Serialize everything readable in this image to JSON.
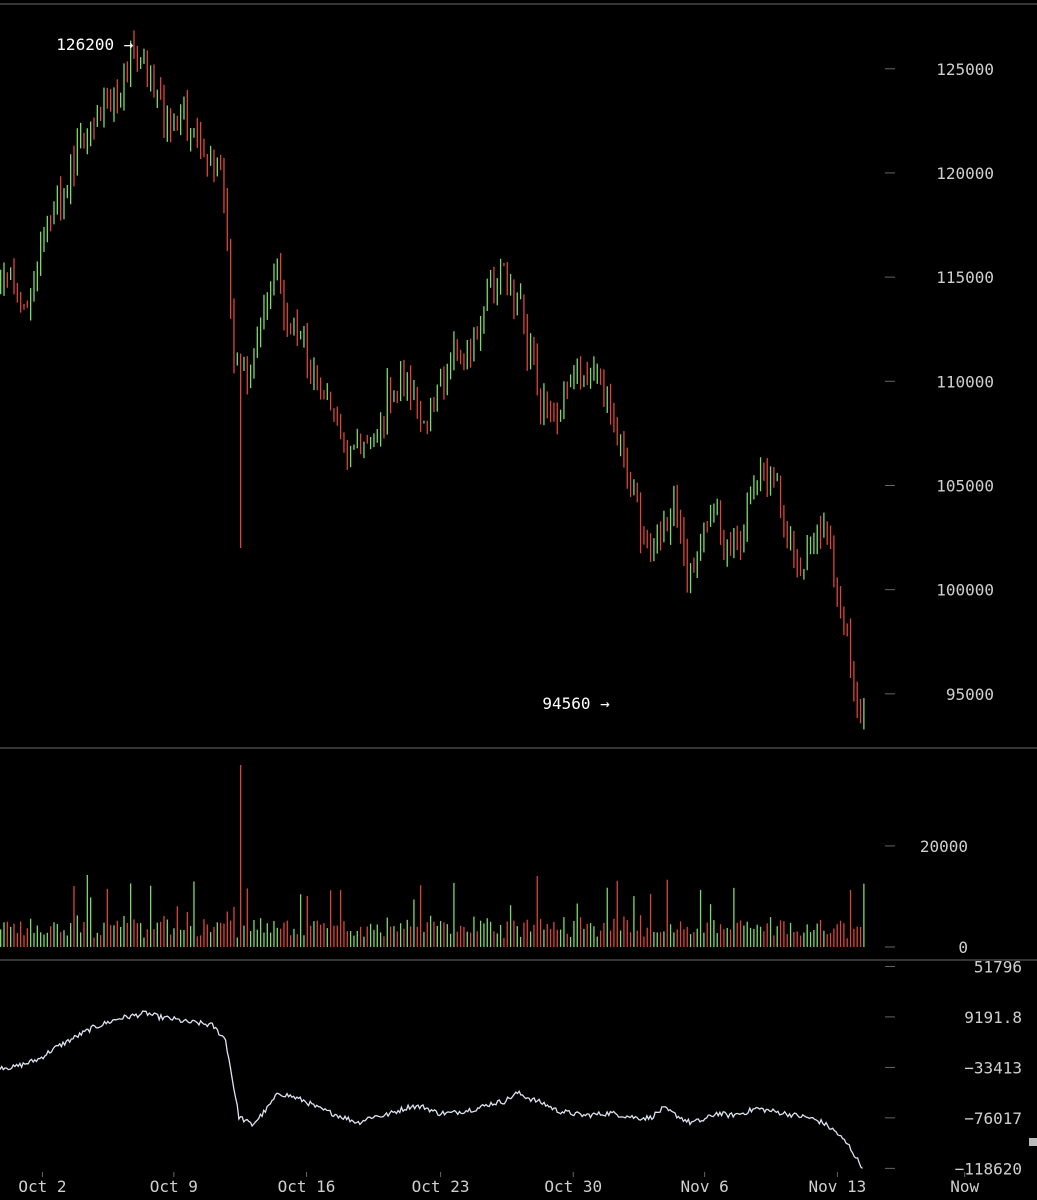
{
  "chart_data": [
    {
      "name": "price",
      "type": "candlestick",
      "y_ticks": [
        125000,
        120000,
        115000,
        110000,
        105000,
        100000,
        95000
      ],
      "y_tick_labels": [
        "125000",
        "120000",
        "115000",
        "110000",
        "105000",
        "100000",
        "95000"
      ],
      "ylim": [
        92400,
        128300
      ],
      "annotations": [
        {
          "text": "126200 →",
          "value": 126200,
          "day": 9.9
        },
        {
          "text": "94560 →",
          "value": 94560,
          "day": 45.8
        }
      ],
      "price_path": [
        [
          1,
          114500
        ],
        [
          2,
          113000
        ],
        [
          3,
          115000
        ],
        [
          4,
          117500
        ],
        [
          5,
          119000
        ],
        [
          6,
          121000
        ],
        [
          7,
          121500
        ],
        [
          8,
          123000
        ],
        [
          9,
          124000
        ],
        [
          10,
          125500
        ],
        [
          11,
          126000
        ],
        [
          12,
          123500
        ],
        [
          13,
          122000
        ],
        [
          14,
          123000
        ],
        [
          15,
          121500
        ],
        [
          16,
          120500
        ],
        [
          17,
          119500
        ],
        [
          18,
          110500
        ],
        [
          19,
          110000
        ],
        [
          20,
          114000
        ],
        [
          21,
          115000
        ],
        [
          22,
          113000
        ],
        [
          23,
          111500
        ],
        [
          24,
          110500
        ],
        [
          25,
          108500
        ],
        [
          26,
          107000
        ],
        [
          27,
          106500
        ],
        [
          28,
          107000
        ],
        [
          29,
          108500
        ],
        [
          30,
          110000
        ],
        [
          31,
          109500
        ],
        [
          32,
          107500
        ],
        [
          33,
          109500
        ],
        [
          34,
          111000
        ],
        [
          35,
          111500
        ],
        [
          36,
          112000
        ],
        [
          37,
          114000
        ],
        [
          38,
          115500
        ],
        [
          39,
          114500
        ],
        [
          40,
          112000
        ],
        [
          41,
          109000
        ],
        [
          42,
          107500
        ],
        [
          43,
          109500
        ],
        [
          44,
          110500
        ],
        [
          45,
          110000
        ],
        [
          46,
          109000
        ],
        [
          47,
          107500
        ],
        [
          48,
          105000
        ],
        [
          49,
          101500
        ],
        [
          50,
          103000
        ],
        [
          51,
          104000
        ],
        [
          52,
          101000
        ],
        [
          53,
          102000
        ],
        [
          54,
          103500
        ],
        [
          55,
          102000
        ],
        [
          56,
          102500
        ],
        [
          57,
          104500
        ],
        [
          58,
          105500
        ],
        [
          59,
          104500
        ],
        [
          60,
          102000
        ],
        [
          61,
          101500
        ],
        [
          62,
          103000
        ],
        [
          63,
          101000
        ],
        [
          64,
          98000
        ],
        [
          65,
          94560
        ]
      ]
    },
    {
      "name": "volume",
      "type": "bar",
      "y_ticks": [
        20000,
        0
      ],
      "y_tick_labels": [
        "20000",
        "0"
      ],
      "ylim": [
        0,
        37000
      ]
    },
    {
      "name": "indicator",
      "type": "line",
      "y_ticks": [
        51796,
        9191.8,
        -33413,
        -76017,
        -118620
      ],
      "y_tick_labels": [
        "51796",
        "9191.8",
        "−33413",
        "−76017",
        "−118620"
      ],
      "ylim": [
        -120000,
        53000
      ],
      "path": [
        [
          0,
          -33000
        ],
        [
          1,
          -33500
        ],
        [
          2,
          -30000
        ],
        [
          3,
          -26000
        ],
        [
          4,
          -18000
        ],
        [
          5,
          -12000
        ],
        [
          6,
          -6000
        ],
        [
          7,
          0
        ],
        [
          8,
          4000
        ],
        [
          9,
          8000
        ],
        [
          10,
          10000
        ],
        [
          11,
          12500
        ],
        [
          12,
          9000
        ],
        [
          13,
          7500
        ],
        [
          14,
          5000
        ],
        [
          15,
          4000
        ],
        [
          16,
          2000
        ],
        [
          17,
          -10000
        ],
        [
          18,
          -75000
        ],
        [
          19,
          -82000
        ],
        [
          20,
          -70000
        ],
        [
          21,
          -55000
        ],
        [
          22,
          -58000
        ],
        [
          23,
          -62000
        ],
        [
          24,
          -68000
        ],
        [
          25,
          -72000
        ],
        [
          26,
          -76000
        ],
        [
          27,
          -80000
        ],
        [
          28,
          -75000
        ],
        [
          29,
          -74000
        ],
        [
          30,
          -70000
        ],
        [
          31,
          -66000
        ],
        [
          32,
          -67000
        ],
        [
          33,
          -72000
        ],
        [
          34,
          -72000
        ],
        [
          35,
          -70000
        ],
        [
          36,
          -68000
        ],
        [
          37,
          -64000
        ],
        [
          38,
          -62000
        ],
        [
          39,
          -55000
        ],
        [
          40,
          -60000
        ],
        [
          41,
          -64000
        ],
        [
          42,
          -70000
        ],
        [
          43,
          -72000
        ],
        [
          44,
          -74000
        ],
        [
          45,
          -73000
        ],
        [
          46,
          -72000
        ],
        [
          47,
          -74000
        ],
        [
          48,
          -76000
        ],
        [
          49,
          -76000
        ],
        [
          50,
          -68000
        ],
        [
          51,
          -74000
        ],
        [
          52,
          -80000
        ],
        [
          53,
          -78000
        ],
        [
          54,
          -72000
        ],
        [
          55,
          -74000
        ],
        [
          56,
          -72000
        ],
        [
          57,
          -68000
        ],
        [
          58,
          -70000
        ],
        [
          59,
          -72000
        ],
        [
          60,
          -74000
        ],
        [
          61,
          -76000
        ],
        [
          62,
          -80000
        ],
        [
          63,
          -88000
        ],
        [
          64,
          -100000
        ],
        [
          65,
          -118620
        ]
      ]
    }
  ],
  "x_axis": {
    "labels": [
      "Oct 2",
      "Oct 9",
      "Oct 16",
      "Oct 23",
      "Oct 30",
      "Nov 6",
      "Nov 13",
      "Now"
    ],
    "positions_days": [
      3.2,
      13.1,
      23.1,
      33.2,
      43.2,
      53.1,
      63.1,
      72.7
    ]
  },
  "colors": {
    "up": "#7ed86e",
    "down": "#d8473a",
    "line": "#dde3f0",
    "background": "#000000"
  }
}
